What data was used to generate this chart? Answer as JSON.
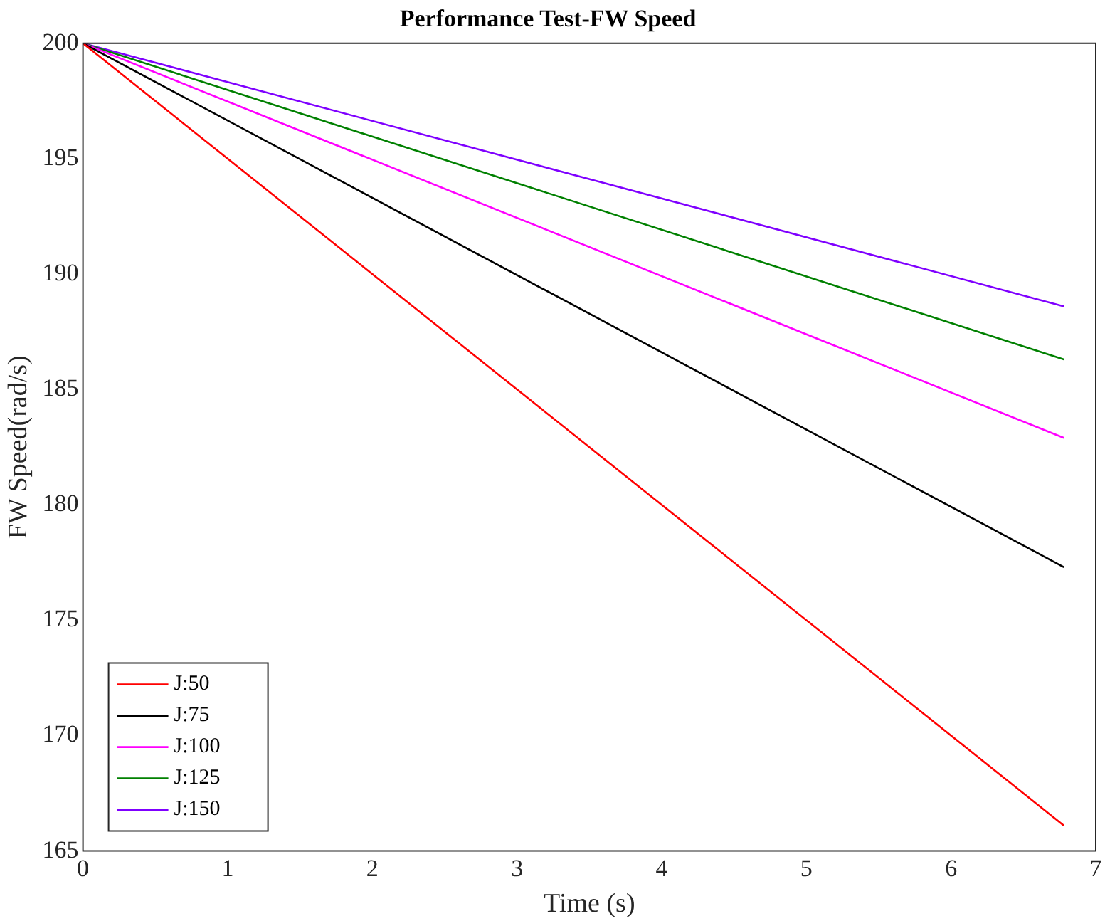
{
  "chart_data": {
    "type": "line",
    "title": "Performance Test-FW Speed",
    "xlabel": "Time (s)",
    "ylabel": "FW Speed(rad/s)",
    "x": [
      0,
      6.78
    ],
    "series": [
      {
        "name": "J:50",
        "color": "#ff0000",
        "values": [
          200,
          166.1
        ]
      },
      {
        "name": "J:75",
        "color": "#000000",
        "values": [
          200,
          177.3
        ]
      },
      {
        "name": "J:100",
        "color": "#ff00ff",
        "values": [
          200,
          182.9
        ]
      },
      {
        "name": "J:125",
        "color": "#008000",
        "values": [
          200,
          186.3
        ]
      },
      {
        "name": "J:150",
        "color": "#7f00ff",
        "values": [
          200,
          188.6
        ]
      }
    ],
    "xlim": [
      0,
      7
    ],
    "xticks": [
      0,
      1,
      2,
      3,
      4,
      5,
      6,
      7
    ],
    "ylim": [
      165,
      200
    ],
    "yticks": [
      165,
      170,
      175,
      180,
      185,
      190,
      195,
      200
    ],
    "grid": false,
    "legend": "bottom left",
    "marker": "none",
    "line_style": "solid"
  }
}
